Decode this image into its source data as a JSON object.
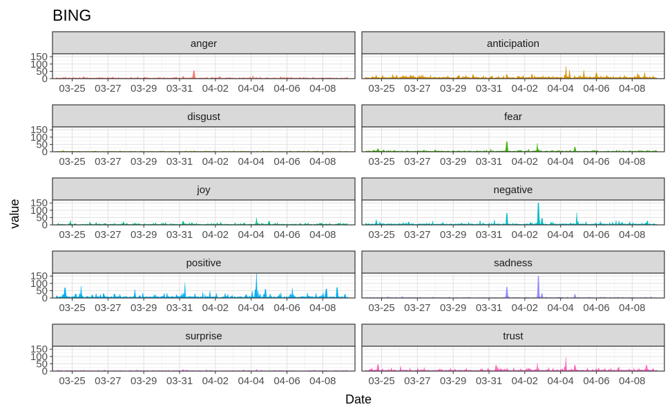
{
  "chart_data": {
    "type": "area",
    "title": "BING",
    "xlabel": "Date",
    "ylabel": "value",
    "x_tick_labels": [
      "03-25",
      "03-27",
      "03-29",
      "03-31",
      "04-02",
      "04-04",
      "04-06",
      "04-08"
    ],
    "x_tick_offsets_days": [
      0,
      2,
      4,
      6,
      8,
      10,
      12,
      14
    ],
    "x_range_days": [
      -1.1,
      15.8
    ],
    "y_ticks": [
      0,
      50,
      100,
      150
    ],
    "y_tick_labels": [
      "0",
      "50",
      "100",
      "150"
    ],
    "ylim": [
      0,
      170
    ],
    "grid": true,
    "layout": "facet_wrap 5 rows x 2 cols",
    "panels": [
      {
        "name": "anger",
        "color": "#F8766D",
        "baseline": 5,
        "noise": 8,
        "peaks": [
          [
            6.8,
            55
          ],
          [
            10.1,
            22
          ],
          [
            6.2,
            15
          ],
          [
            -0.5,
            10
          ]
        ]
      },
      {
        "name": "anticipation",
        "color": "#D89000",
        "baseline": 10,
        "noise": 16,
        "peaks": [
          [
            10.3,
            85
          ],
          [
            10.5,
            60
          ],
          [
            11.3,
            58
          ],
          [
            12.0,
            40
          ],
          [
            14.7,
            45
          ],
          [
            14.3,
            38
          ],
          [
            -0.3,
            25
          ],
          [
            1.2,
            20
          ]
        ]
      },
      {
        "name": "disgust",
        "color": "#A3A500",
        "baseline": 3,
        "noise": 4,
        "peaks": [
          [
            -0.5,
            10
          ],
          [
            6.8,
            6
          ]
        ]
      },
      {
        "name": "fear",
        "color": "#39B600",
        "baseline": 5,
        "noise": 8,
        "peaks": [
          [
            7.0,
            70
          ],
          [
            8.7,
            58
          ],
          [
            10.8,
            32
          ],
          [
            -0.2,
            20
          ],
          [
            6.1,
            20
          ]
        ]
      },
      {
        "name": "joy",
        "color": "#00BF7D",
        "baseline": 5,
        "noise": 11,
        "peaks": [
          [
            10.3,
            48
          ],
          [
            -0.1,
            30
          ],
          [
            6.2,
            24
          ],
          [
            11.0,
            25
          ]
        ]
      },
      {
        "name": "negative",
        "color": "#00BFC4",
        "baseline": 7,
        "noise": 17,
        "peaks": [
          [
            8.75,
            150
          ],
          [
            10.9,
            85
          ],
          [
            7.0,
            80
          ],
          [
            8.95,
            45
          ],
          [
            -0.3,
            38
          ],
          [
            6.3,
            35
          ],
          [
            13.1,
            30
          ]
        ]
      },
      {
        "name": "positive",
        "color": "#00B0F6",
        "baseline": 10,
        "noise": 26,
        "peaks": [
          [
            10.3,
            170
          ],
          [
            6.3,
            105
          ],
          [
            -0.4,
            70
          ],
          [
            0.5,
            80
          ],
          [
            12.3,
            68
          ],
          [
            14.8,
            72
          ],
          [
            3.5,
            60
          ],
          [
            10.8,
            60
          ],
          [
            14.2,
            62
          ]
        ]
      },
      {
        "name": "sadness",
        "color": "#9590FF",
        "baseline": 3,
        "noise": 6,
        "peaks": [
          [
            8.75,
            150
          ],
          [
            7.0,
            75
          ],
          [
            8.95,
            30
          ],
          [
            10.8,
            25
          ]
        ]
      },
      {
        "name": "surprise",
        "color": "#E76BF3",
        "baseline": 3,
        "noise": 5,
        "peaks": [
          [
            10.3,
            14
          ],
          [
            6.2,
            10
          ]
        ]
      },
      {
        "name": "trust",
        "color": "#FF62BC",
        "baseline": 7,
        "noise": 16,
        "peaks": [
          [
            10.3,
            95
          ],
          [
            8.7,
            55
          ],
          [
            -0.2,
            45
          ],
          [
            10.8,
            40
          ],
          [
            6.4,
            40
          ],
          [
            14.8,
            40
          ]
        ]
      }
    ]
  }
}
